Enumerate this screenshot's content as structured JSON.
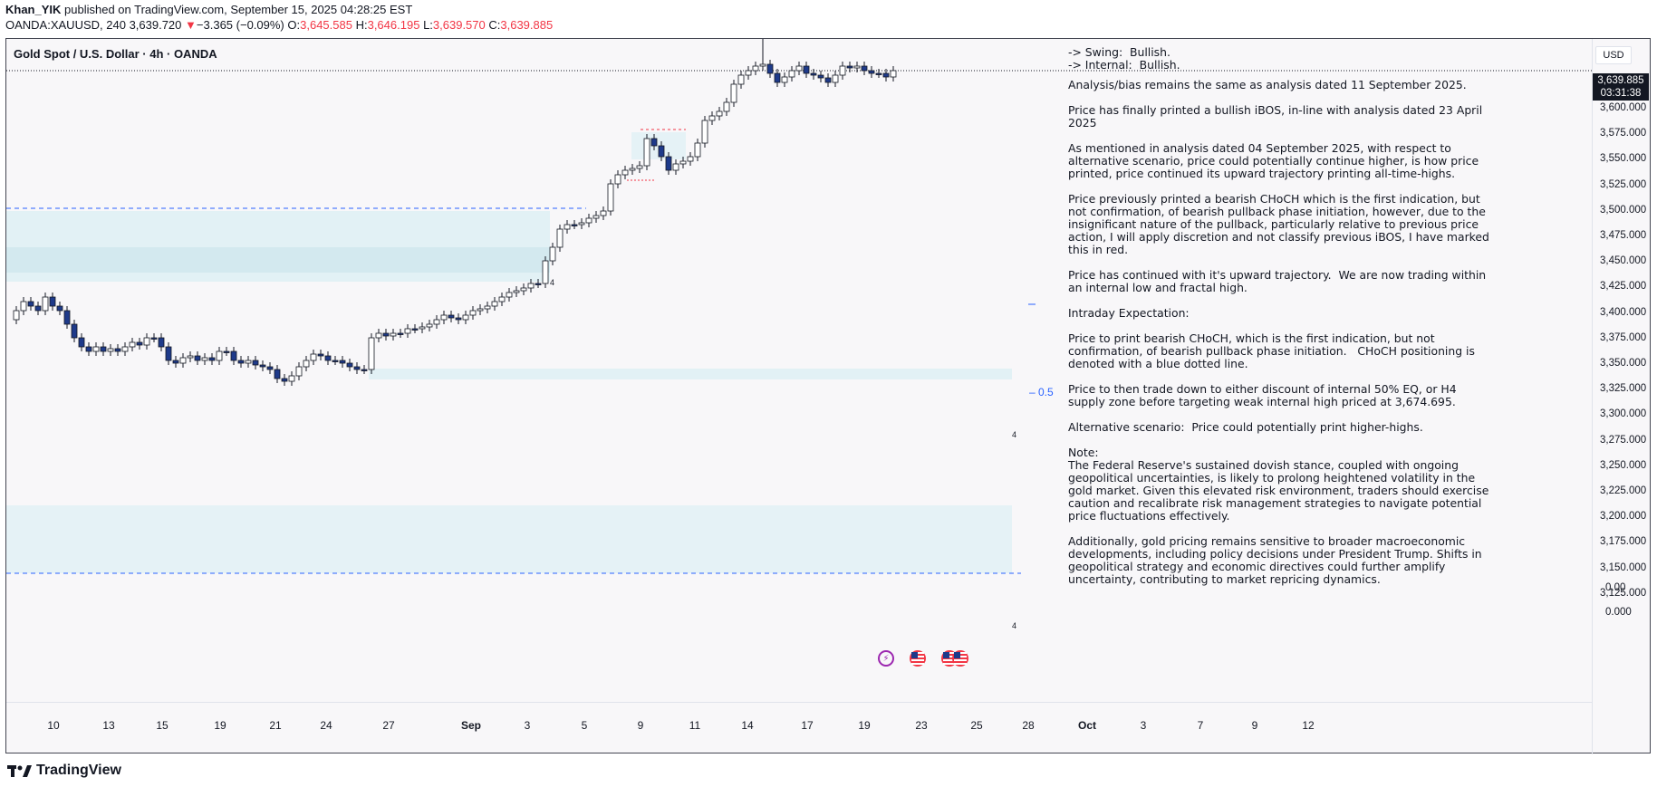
{
  "header": {
    "author": "Khan_YIK",
    "published_text": " published on TradingView.com, September 15, 2025 04:28:25 EST",
    "symbol": "OANDA:XAUUSD, 240",
    "last": "3,639.720",
    "change_arrow": "▼",
    "change": "−3.365 (−0.09%)",
    "o_label": "O:",
    "o_value": "3,645.585",
    "h_label": "H:",
    "h_value": "3,646.195",
    "l_label": "L:",
    "l_value": "3,639.570",
    "c_label": "C:",
    "c_value": "3,639.885"
  },
  "chart": {
    "title": "Gold Spot / U.S. Dollar · 4h · OANDA",
    "currency": "USD",
    "current_price": "3,639.885",
    "countdown": "03:31:38",
    "half_label": "– 0.5",
    "price_ticks": [
      "3,600.000",
      "3,575.000",
      "3,550.000",
      "3,525.000",
      "3,500.000",
      "3,475.000",
      "3,450.000",
      "3,425.000",
      "3,400.000",
      "3,375.000",
      "3,350.000",
      "3,325.000",
      "3,300.000",
      "3,275.000",
      "3,250.000",
      "3,225.000",
      "3,200.000",
      "3,175.000",
      "3,150.000",
      "3,125.000"
    ],
    "indicator_ticks": [
      "0.00",
      "0.000"
    ],
    "time_ticks": [
      "10",
      "13",
      "15",
      "19",
      "21",
      "24",
      "27",
      "Sep",
      "3",
      "5",
      "9",
      "11",
      "14",
      "17",
      "19",
      "23",
      "25",
      "28",
      "Oct",
      "3",
      "7",
      "9",
      "12"
    ],
    "zone_number": "4",
    "colors": {
      "up": "#ffffff",
      "down": "#1e3a8a",
      "zone": "#d9eef3",
      "dash": "#2962ff",
      "red": "#f23645"
    }
  },
  "annotation": {
    "swing": "-> Swing:  Bullish.",
    "internal": "-> Internal:  Bullish.",
    "p1": "Analysis/bias remains the same as analysis dated 11 September 2025.",
    "p2": "Price has finally printed a bullish iBOS, in-line with analysis dated 23 April 2025",
    "p3": "As mentioned in analysis dated 04 September 2025, with respect to alternative scenario, price could potentially continue higher, is how price printed, price continued its upward trajectory printing all-time-highs.",
    "p4": "Price previously printed a bearish CHoCH which is the first indication, but not confirmation, of bearish pullback phase initiation, however, due to the insignificant nature of the pullback, particularly relative to previous price action, I will apply discretion and not classify previous iBOS, I have marked this in red.",
    "p5": "Price has continued with it's upward trajectory.  We are now trading within an internal low and fractal high.",
    "p6": "Intraday Expectation:",
    "p7": "Price to print bearish CHoCH, which is the first indication, but not confirmation, of bearish pullback phase initiation.   CHoCH positioning is denoted with a blue dotted line.",
    "p8": "Price to then trade down to either discount of internal 50% EQ, or H4 supply zone before targeting weak internal high priced at 3,674.695.",
    "p9": "Alternative scenario:  Price could potentially print higher-highs.",
    "note_title": "Note:",
    "p10": "The Federal Reserve's sustained dovish stance, coupled with ongoing geopolitical uncertainties, is likely to prolong heightened volatility in the gold market. Given this elevated risk environment, traders should exercise caution and recalibrate risk management strategies to navigate potential price fluctuations effectively.",
    "p11": "Additionally, gold pricing remains sensitive to broader macroeconomic developments, including policy decisions under President Trump. Shifts in geopolitical strategy and economic directives could further amplify uncertainty, contributing to market repricing dynamics."
  },
  "footer": {
    "brand": "TradingView"
  }
}
